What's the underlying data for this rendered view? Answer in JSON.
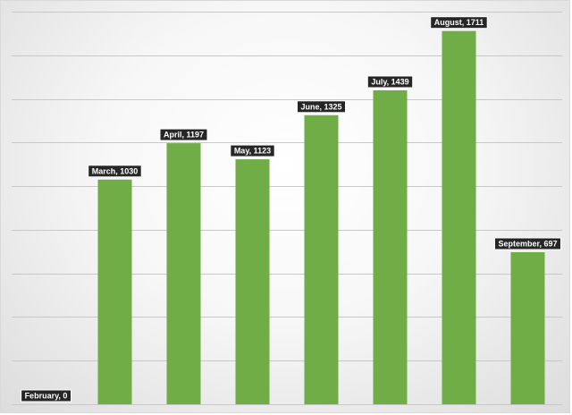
{
  "chart_data": {
    "type": "bar",
    "categories": [
      "February",
      "March",
      "April",
      "May",
      "June",
      "July",
      "August",
      "September"
    ],
    "values": [
      0,
      1030,
      1197,
      1123,
      1325,
      1439,
      1711,
      697
    ],
    "data_labels": [
      "February, 0",
      "March, 1030",
      "April, 1197",
      "May, 1123",
      "June, 1325",
      "July, 1439",
      "August, 1711",
      "September, 697"
    ],
    "title": "",
    "xlabel": "",
    "ylabel": "",
    "ylim": [
      0,
      1800
    ],
    "grid": true,
    "legend": "none",
    "colors": {
      "bar": "#70ad47",
      "label_background": "#262626",
      "label_text": "#ffffff",
      "gridline": "#c8c8c8"
    }
  }
}
